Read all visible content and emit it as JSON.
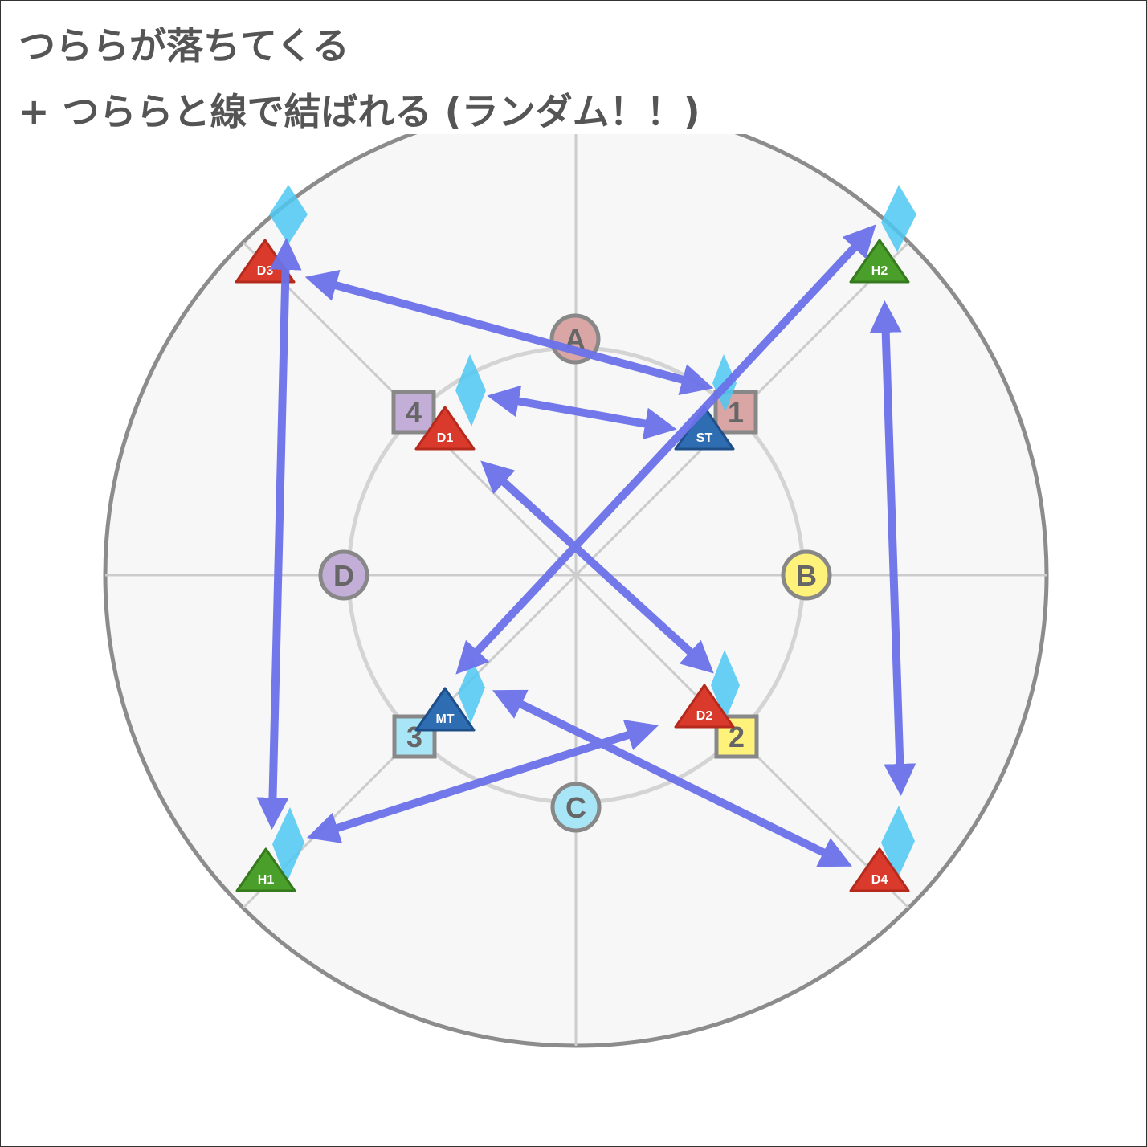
{
  "title": {
    "line1": "つららが落ちてくる",
    "line2": "+ つららと線で結ばれる (ランダム！！)"
  },
  "colors": {
    "arena_fill": "#f7f7f7",
    "arena_border": "#8c8c8c",
    "grid": "#cccccc",
    "inner_ring": "#d4d4d4",
    "tether": "#6b72ea",
    "icicle": "#4cc8f2",
    "dps": "#d93a2b",
    "healer": "#4a9e2a",
    "tank": "#2f6db3",
    "marker_a": "#d9a5a5",
    "marker_b": "#fff27a",
    "marker_c": "#a8e6f7",
    "marker_d": "#c3aed8"
  },
  "waymarks": [
    {
      "id": "A",
      "label": "A",
      "shape": "circle",
      "color": "#d9a5a5"
    },
    {
      "id": "B",
      "label": "B",
      "shape": "circle",
      "color": "#fff27a"
    },
    {
      "id": "C",
      "label": "C",
      "shape": "circle",
      "color": "#a8e6f7"
    },
    {
      "id": "D",
      "label": "D",
      "shape": "circle",
      "color": "#c3aed8"
    },
    {
      "id": "1",
      "label": "1",
      "shape": "square",
      "color": "#d9a5a5"
    },
    {
      "id": "2",
      "label": "2",
      "shape": "square",
      "color": "#fff27a"
    },
    {
      "id": "3",
      "label": "3",
      "shape": "square",
      "color": "#a8e6f7"
    },
    {
      "id": "4",
      "label": "4",
      "shape": "square",
      "color": "#c3aed8"
    }
  ],
  "players": [
    {
      "id": "D3",
      "label": "D3",
      "role": "dps"
    },
    {
      "id": "H2",
      "label": "H2",
      "role": "healer"
    },
    {
      "id": "D1",
      "label": "D1",
      "role": "dps"
    },
    {
      "id": "ST",
      "label": "ST",
      "role": "tank"
    },
    {
      "id": "MT",
      "label": "MT",
      "role": "tank"
    },
    {
      "id": "D2",
      "label": "D2",
      "role": "dps"
    },
    {
      "id": "H1",
      "label": "H1",
      "role": "healer"
    },
    {
      "id": "D4",
      "label": "D4",
      "role": "dps"
    }
  ]
}
